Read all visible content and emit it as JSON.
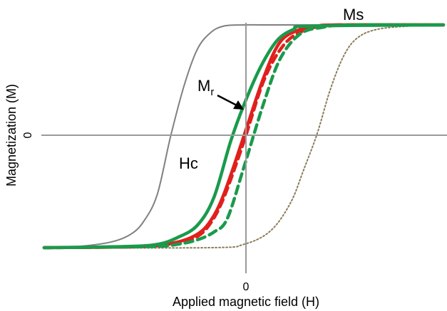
{
  "chart_data": {
    "type": "line",
    "xlabel": "Applied magnetic field (H)",
    "ylabel": "Magnetization (M)",
    "x_tick_label": "0",
    "y_tick_label": "0",
    "xlim": [
      -3,
      3
    ],
    "ylim": [
      -1.1,
      1.1
    ],
    "grid": false,
    "legend": "none",
    "annotations": {
      "ms": "Ms",
      "mr_main": "M",
      "mr_sub": "r",
      "hc": "Hc"
    },
    "series": [
      {
        "style": "thin-solid",
        "color": "#808080",
        "x": [
          -3,
          -2.5,
          -2.0,
          -1.7,
          -1.5,
          -1.3,
          -1.1,
          -0.9,
          -0.7,
          -0.5,
          -0.3,
          0.0,
          0.5,
          3
        ],
        "y": [
          -1.0,
          -0.99,
          -0.95,
          -0.88,
          -0.76,
          -0.52,
          0.0,
          0.45,
          0.78,
          0.93,
          0.99,
          1.0,
          1.0,
          1.0
        ]
      },
      {
        "style": "thin-dotted",
        "color": "#8b7d5a",
        "x": [
          -3,
          -0.5,
          0.0,
          0.4,
          0.7,
          0.9,
          1.1,
          1.3,
          1.5,
          1.7,
          2.0,
          2.5,
          3
        ],
        "y": [
          -1.0,
          -1.0,
          -0.97,
          -0.85,
          -0.6,
          -0.3,
          0.02,
          0.42,
          0.72,
          0.88,
          0.96,
          0.99,
          1.0
        ]
      },
      {
        "style": "thick-dashed",
        "color": "#e0201c",
        "x": [
          -3,
          -1.5,
          -1.0,
          -0.7,
          -0.5,
          -0.3,
          0.0,
          0.3,
          0.6,
          0.9,
          1.2,
          1.5,
          3
        ],
        "y": [
          -1.0,
          -0.99,
          -0.96,
          -0.9,
          -0.78,
          -0.55,
          -0.05,
          0.5,
          0.82,
          0.95,
          0.99,
          1.0,
          1.0
        ]
      },
      {
        "style": "thick-solid",
        "color": "#e0201c",
        "x": [
          -3,
          -1.5,
          -1.0,
          -0.7,
          -0.5,
          -0.3,
          0.0,
          0.3,
          0.55,
          0.85,
          1.1,
          1.4,
          3
        ],
        "y": [
          -1.0,
          -0.99,
          -0.95,
          -0.88,
          -0.76,
          -0.52,
          0.0,
          0.53,
          0.85,
          0.96,
          0.99,
          1.0,
          1.0
        ]
      },
      {
        "style": "thick-dashed",
        "color": "#1a9a4c",
        "x": [
          -3,
          -1.4,
          -1.0,
          -0.7,
          -0.45,
          -0.25,
          0.0,
          0.3,
          0.55,
          0.85,
          1.2,
          1.6,
          3
        ],
        "y": [
          -1.0,
          -0.99,
          -0.97,
          -0.93,
          -0.86,
          -0.74,
          -0.28,
          0.3,
          0.7,
          0.92,
          0.98,
          1.0,
          1.0
        ]
      },
      {
        "style": "thick-solid",
        "color": "#1a9a4c",
        "x": [
          -3,
          -1.8,
          -1.3,
          -1.0,
          -0.7,
          -0.45,
          -0.2,
          0.0,
          0.25,
          0.5,
          0.75,
          1.0,
          3
        ],
        "y": [
          -1.0,
          -0.99,
          -0.97,
          -0.91,
          -0.8,
          -0.55,
          -0.05,
          0.28,
          0.62,
          0.86,
          0.96,
          0.99,
          1.0
        ]
      }
    ]
  }
}
